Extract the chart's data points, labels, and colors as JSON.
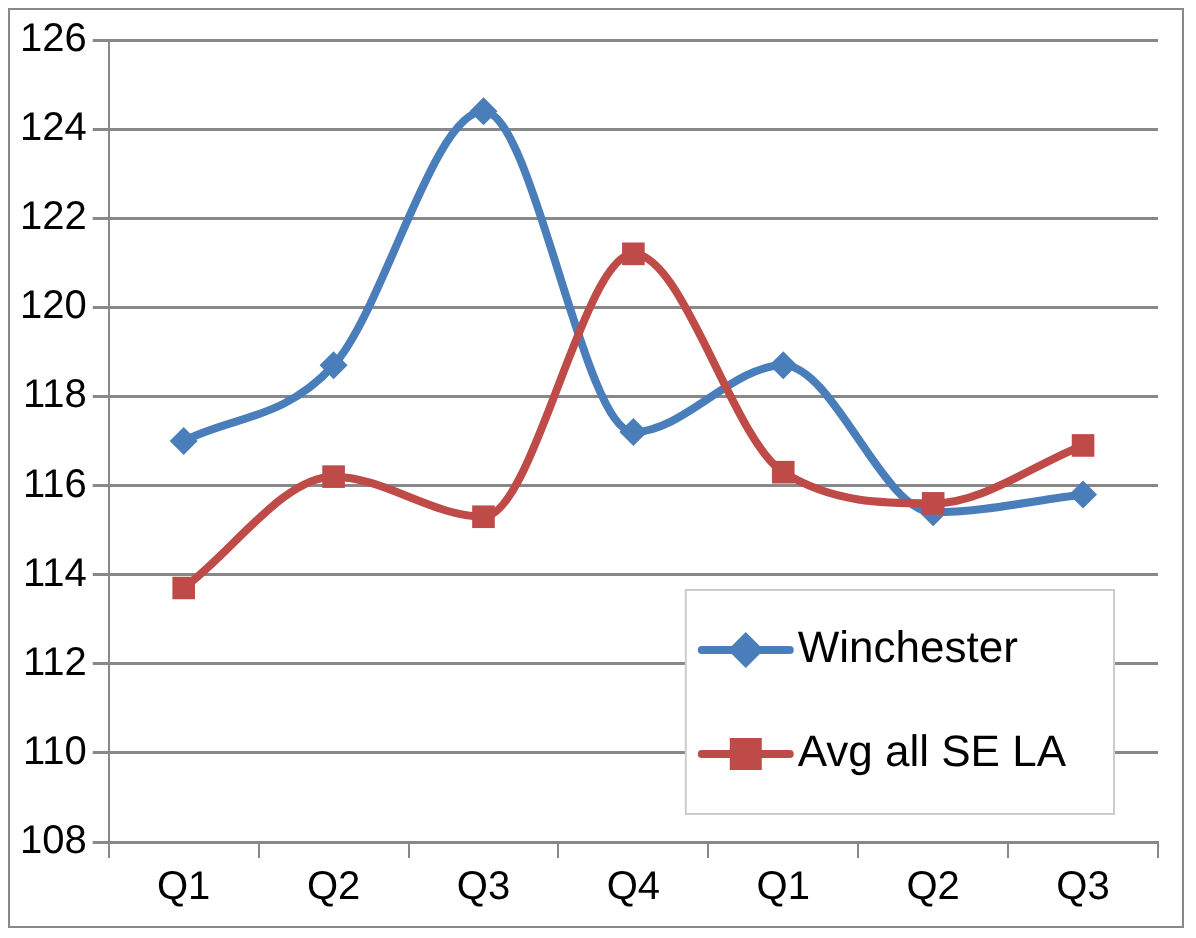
{
  "chart_data": {
    "type": "line",
    "categories": [
      "Q1",
      "Q2",
      "Q3",
      "Q4",
      "Q1",
      "Q2",
      "Q3"
    ],
    "series": [
      {
        "name": "Winchester",
        "color": "#4a7ebb",
        "marker": "diamond",
        "values": [
          117.0,
          118.7,
          124.4,
          117.2,
          118.7,
          115.4,
          115.8
        ]
      },
      {
        "name": "Avg all SE LA",
        "color": "#be4b48",
        "marker": "square",
        "values": [
          113.7,
          116.2,
          115.3,
          121.2,
          116.3,
          115.6,
          116.9
        ]
      }
    ],
    "ylim": [
      108,
      126
    ],
    "yticks": [
      108,
      110,
      112,
      114,
      116,
      118,
      120,
      122,
      124,
      126
    ],
    "grid": "y",
    "legend": "bottom right"
  }
}
